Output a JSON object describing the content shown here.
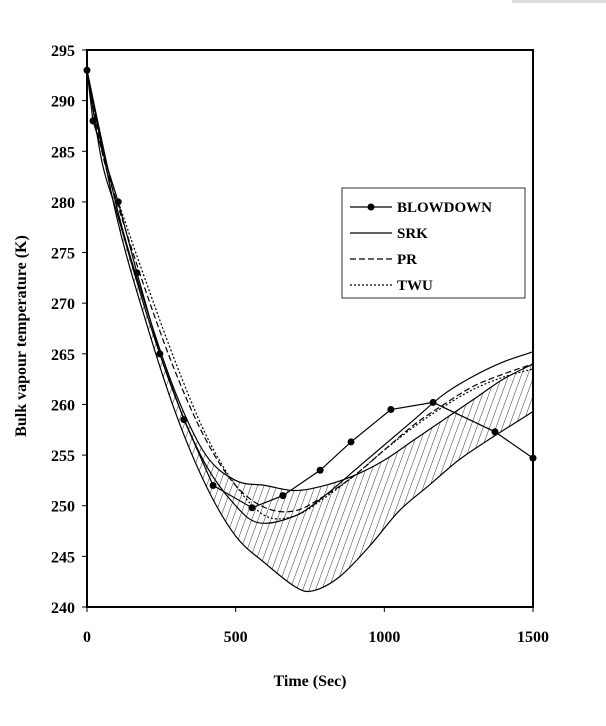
{
  "chart_data": {
    "type": "line",
    "title": "",
    "xlabel": "Time (Sec)",
    "ylabel": "Bulk vapour temperature (K)",
    "xlim": [
      0,
      1500
    ],
    "ylim": [
      240,
      295
    ],
    "xticks": [
      0,
      500,
      1000,
      1500
    ],
    "yticks": [
      240,
      245,
      250,
      255,
      260,
      265,
      270,
      275,
      280,
      285,
      290,
      295
    ],
    "grid": false,
    "legend_placement": "right",
    "series": [
      {
        "name": "BLOWDOWN",
        "style": "solid-markers",
        "points": [
          [
            0,
            293
          ],
          [
            20,
            288
          ],
          [
            105,
            280
          ],
          [
            168,
            273
          ],
          [
            245,
            265
          ],
          [
            326,
            258.5
          ],
          [
            424,
            252
          ],
          [
            555,
            249.8
          ],
          [
            659,
            251
          ],
          [
            784,
            253.5
          ],
          [
            888,
            256.3
          ],
          [
            1022,
            259.5
          ],
          [
            1164,
            260.2
          ],
          [
            1372,
            257.3
          ],
          [
            1500,
            254.7
          ]
        ]
      },
      {
        "name": "SRK",
        "style": "solid",
        "points": [
          [
            0,
            293
          ],
          [
            50,
            284
          ],
          [
            100,
            279
          ],
          [
            200,
            269
          ],
          [
            300,
            260.5
          ],
          [
            400,
            254
          ],
          [
            500,
            250
          ],
          [
            580,
            248.3
          ],
          [
            700,
            249
          ],
          [
            800,
            251
          ],
          [
            900,
            253.5
          ],
          [
            1000,
            256
          ],
          [
            1100,
            258.5
          ],
          [
            1200,
            261
          ],
          [
            1300,
            262.8
          ],
          [
            1400,
            264.2
          ],
          [
            1500,
            265.2
          ]
        ]
      },
      {
        "name": "PR",
        "style": "dashed",
        "points": [
          [
            0,
            293
          ],
          [
            50,
            285
          ],
          [
            100,
            280
          ],
          [
            200,
            271
          ],
          [
            300,
            263
          ],
          [
            400,
            256.5
          ],
          [
            500,
            252
          ],
          [
            600,
            249.8
          ],
          [
            700,
            249.5
          ],
          [
            800,
            251
          ],
          [
            900,
            253
          ],
          [
            1000,
            255.5
          ],
          [
            1100,
            258
          ],
          [
            1200,
            260
          ],
          [
            1300,
            261.8
          ],
          [
            1400,
            263
          ],
          [
            1500,
            264
          ]
        ]
      },
      {
        "name": "TWU",
        "style": "dotted",
        "points": [
          [
            0,
            293
          ],
          [
            50,
            285.5
          ],
          [
            100,
            280.5
          ],
          [
            200,
            272
          ],
          [
            300,
            264
          ],
          [
            400,
            257
          ],
          [
            500,
            252
          ],
          [
            600,
            249
          ],
          [
            700,
            249
          ],
          [
            800,
            250.8
          ],
          [
            900,
            253
          ],
          [
            1000,
            255.5
          ],
          [
            1100,
            257.8
          ],
          [
            1200,
            259.8
          ],
          [
            1300,
            261.5
          ],
          [
            1400,
            262.7
          ],
          [
            1500,
            263.5
          ]
        ]
      }
    ],
    "band": {
      "style": "hatched",
      "upper": [
        [
          0,
          293
        ],
        [
          100,
          279.5
        ],
        [
          200,
          269.5
        ],
        [
          300,
          261
        ],
        [
          400,
          255
        ],
        [
          500,
          252.5
        ],
        [
          600,
          252
        ],
        [
          700,
          251.5
        ],
        [
          800,
          252
        ],
        [
          900,
          253
        ],
        [
          1000,
          254.5
        ],
        [
          1100,
          256.5
        ],
        [
          1200,
          258.5
        ],
        [
          1300,
          260.5
        ],
        [
          1400,
          262.5
        ],
        [
          1500,
          264
        ]
      ],
      "lower": [
        [
          0,
          293
        ],
        [
          100,
          278.5
        ],
        [
          200,
          268
        ],
        [
          300,
          259
        ],
        [
          400,
          252
        ],
        [
          500,
          247
        ],
        [
          600,
          244.3
        ],
        [
          700,
          242
        ],
        [
          760,
          241.6
        ],
        [
          850,
          243
        ],
        [
          950,
          246
        ],
        [
          1050,
          249.5
        ],
        [
          1150,
          252
        ],
        [
          1250,
          254.5
        ],
        [
          1350,
          256.5
        ],
        [
          1500,
          259.3
        ]
      ]
    },
    "colors": {
      "ink": "#000000",
      "background": "#ffffff"
    }
  }
}
